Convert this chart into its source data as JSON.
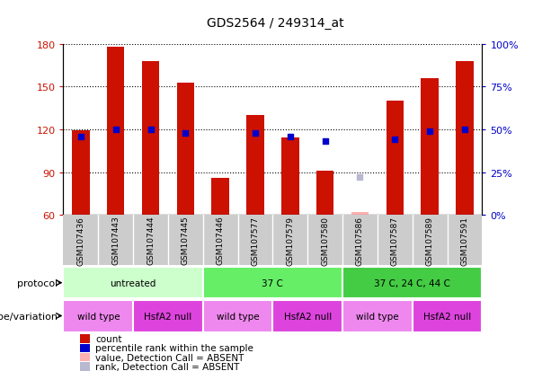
{
  "title": "GDS2564 / 249314_at",
  "samples": [
    "GSM107436",
    "GSM107443",
    "GSM107444",
    "GSM107445",
    "GSM107446",
    "GSM107577",
    "GSM107579",
    "GSM107580",
    "GSM107586",
    "GSM107587",
    "GSM107589",
    "GSM107591"
  ],
  "counts": [
    119,
    178,
    168,
    153,
    86,
    130,
    114,
    91,
    null,
    140,
    156,
    168
  ],
  "percentile_ranks": [
    46,
    50,
    50,
    48,
    null,
    48,
    46,
    43,
    null,
    44,
    49,
    50
  ],
  "absent_values": [
    null,
    null,
    null,
    null,
    null,
    null,
    null,
    null,
    62,
    null,
    null,
    null
  ],
  "absent_ranks": [
    null,
    null,
    null,
    null,
    null,
    null,
    null,
    null,
    22,
    null,
    null,
    null
  ],
  "ylim_left": [
    60,
    180
  ],
  "ylim_right": [
    0,
    100
  ],
  "yticks_left": [
    60,
    90,
    120,
    150,
    180
  ],
  "yticks_right": [
    0,
    25,
    50,
    75,
    100
  ],
  "ytick_labels_right": [
    "0%",
    "25%",
    "50%",
    "75%",
    "100%"
  ],
  "bar_color": "#CC1100",
  "dot_color": "#0000CC",
  "absent_bar_color": "#FFB0B0",
  "absent_dot_color": "#B8B8D0",
  "protocol_groups": [
    {
      "label": "untreated",
      "start": 0,
      "end": 4,
      "color": "#CCFFCC"
    },
    {
      "label": "37 C",
      "start": 4,
      "end": 8,
      "color": "#66EE66"
    },
    {
      "label": "37 C, 24 C, 44 C",
      "start": 8,
      "end": 12,
      "color": "#44CC44"
    }
  ],
  "genotype_groups": [
    {
      "label": "wild type",
      "start": 0,
      "end": 2,
      "color": "#EE88EE"
    },
    {
      "label": "HsfA2 null",
      "start": 2,
      "end": 4,
      "color": "#DD44DD"
    },
    {
      "label": "wild type",
      "start": 4,
      "end": 6,
      "color": "#EE88EE"
    },
    {
      "label": "HsfA2 null",
      "start": 6,
      "end": 8,
      "color": "#DD44DD"
    },
    {
      "label": "wild type",
      "start": 8,
      "end": 10,
      "color": "#EE88EE"
    },
    {
      "label": "HsfA2 null",
      "start": 10,
      "end": 12,
      "color": "#DD44DD"
    }
  ],
  "legend_data": [
    {
      "label": "count",
      "color": "#CC1100"
    },
    {
      "label": "percentile rank within the sample",
      "color": "#0000CC"
    },
    {
      "label": "value, Detection Call = ABSENT",
      "color": "#FFB0B0"
    },
    {
      "label": "rank, Detection Call = ABSENT",
      "color": "#B8B8D0"
    }
  ],
  "sample_area_color": "#CCCCCC",
  "title_fontsize": 10,
  "axis_label_fontsize": 8,
  "tick_label_fontsize": 8,
  "sample_label_fontsize": 6.5
}
